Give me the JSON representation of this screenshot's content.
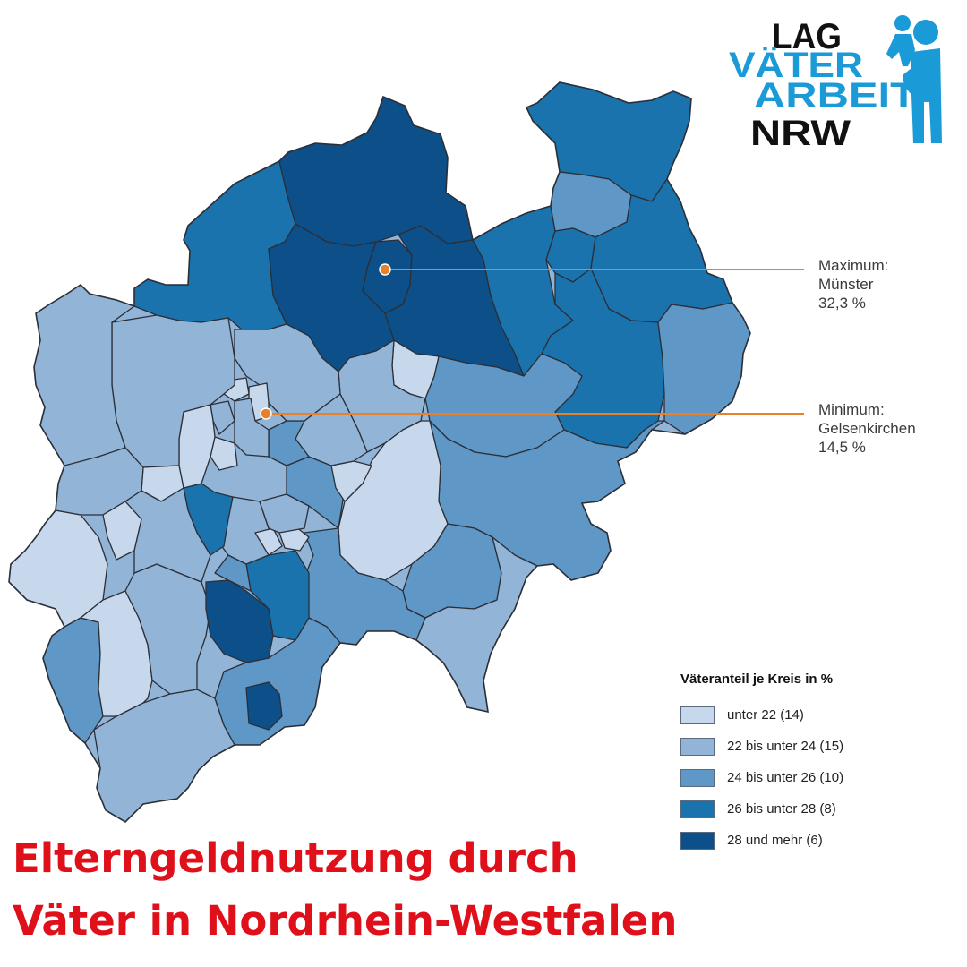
{
  "logo": {
    "line1": "LAG",
    "line2": "VÄTER",
    "line3": "ARBEIT",
    "line4": "NRW",
    "dark_color": "#111111",
    "blue_color": "#1a9ad6",
    "icon": "father-with-child-icon"
  },
  "callouts": {
    "max": {
      "title": "Maximum:",
      "place": "Münster",
      "value": "32,3 %"
    },
    "min": {
      "title": "Minimum:",
      "place": "Gelsenkirchen",
      "value": "14,5 %"
    },
    "line_color": "#e8822a"
  },
  "legend": {
    "title": "Väteranteil je Kreis in %",
    "items": [
      {
        "label": "unter 22 (14)",
        "color": "#c8d8ec"
      },
      {
        "label": "22 bis unter 24 (15)",
        "color": "#92b4d7"
      },
      {
        "label": "24 bis unter 26 (10)",
        "color": "#5f97c6"
      },
      {
        "label": "26 bis unter 28 (8)",
        "color": "#1a73ad"
      },
      {
        "label": "28 und mehr (6)",
        "color": "#0d4f88"
      }
    ]
  },
  "headline": {
    "line1": "Elterngeldnutzung durch",
    "line2": "Väter in Nordrhein-Westfalen",
    "color": "#e0101b"
  }
}
